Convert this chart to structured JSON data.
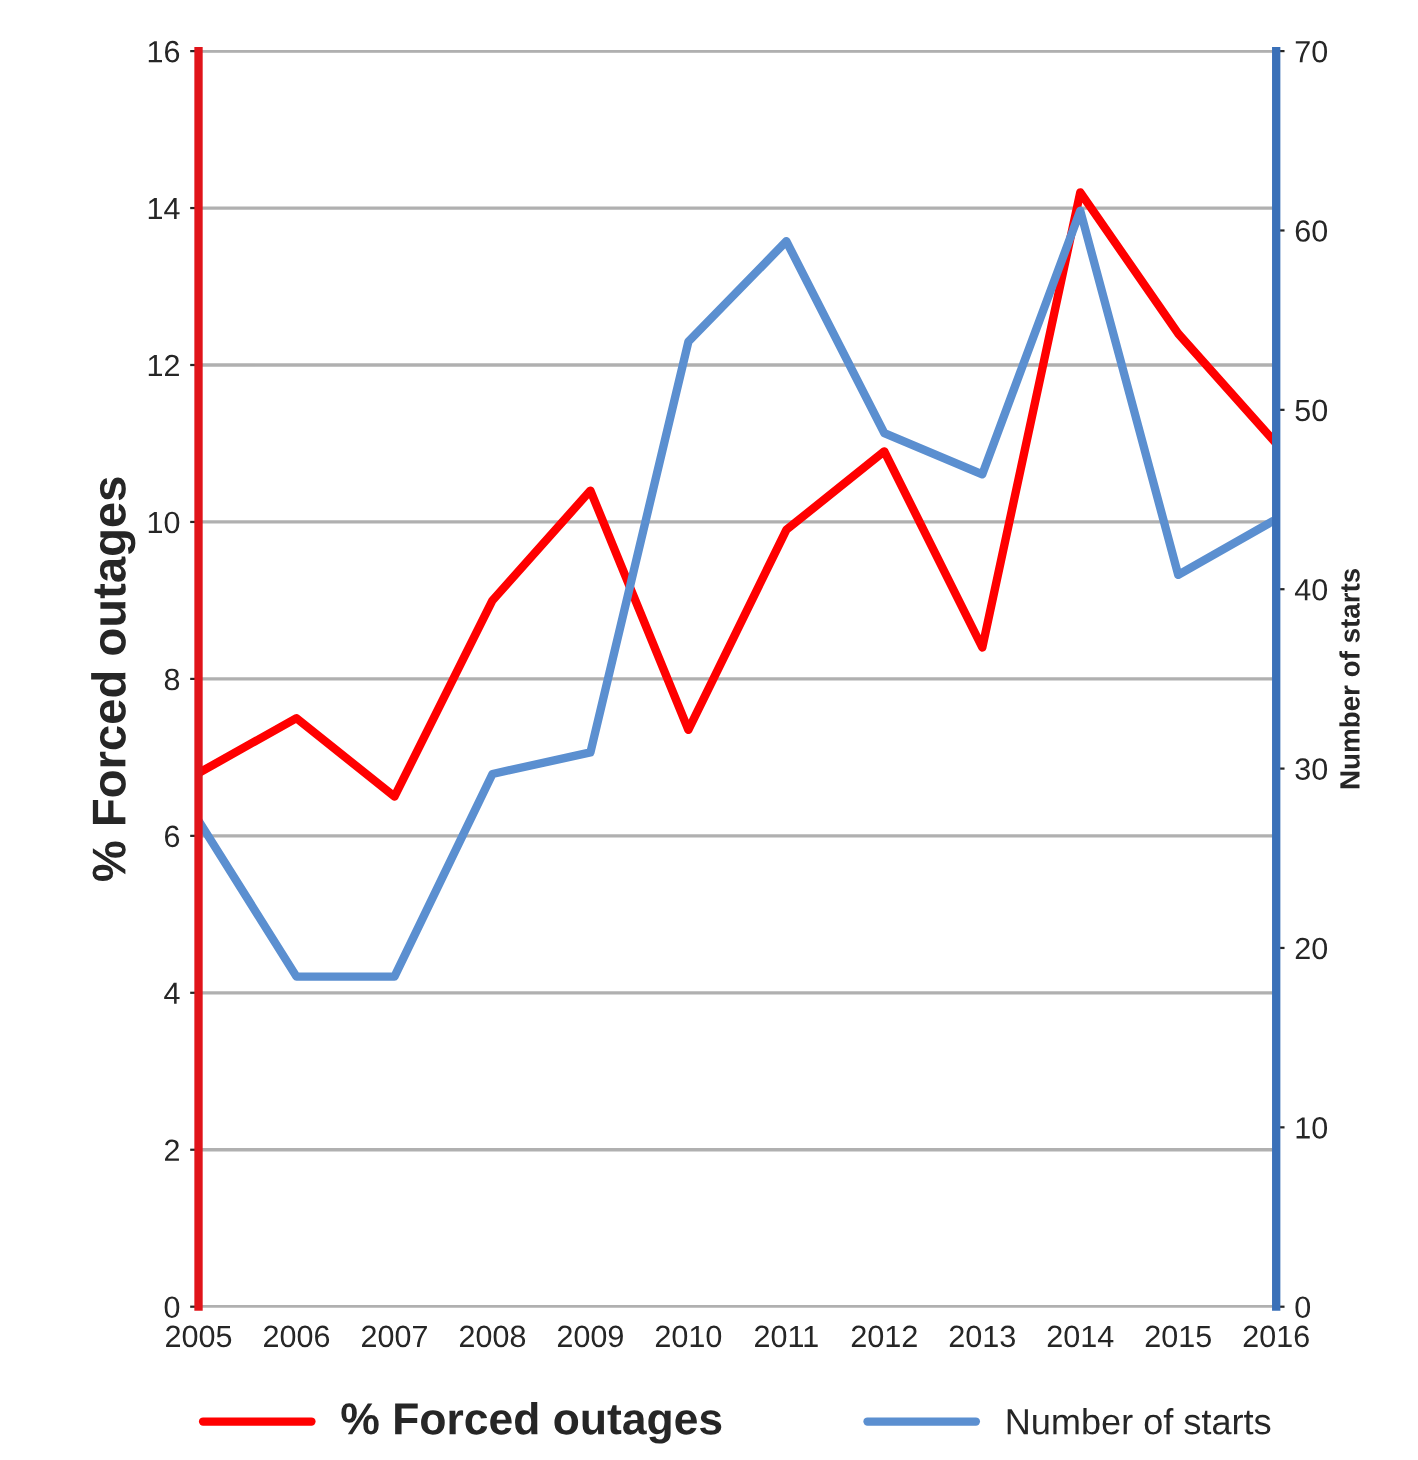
{
  "chart_data": {
    "type": "line",
    "x": [
      2005,
      2006,
      2007,
      2008,
      2009,
      2010,
      2011,
      2012,
      2013,
      2014,
      2015,
      2016
    ],
    "series": [
      {
        "name": "% Forced outages",
        "color": "#ff0000",
        "values": [
          6.8,
          7.5,
          6.5,
          9.0,
          10.4,
          7.35,
          9.9,
          10.9,
          8.4,
          14.2,
          12.4,
          11.0
        ]
      },
      {
        "name": "Number of starts",
        "color": "#5b8fd0",
        "axis": "y2",
        "values": [
          27.1,
          18.4,
          18.4,
          29.7,
          30.9,
          53.8,
          59.4,
          48.7,
          46.4,
          61.1,
          40.8,
          43.9
        ]
      }
    ],
    "ylabel": "% Forced outages",
    "y2label": "Number of starts",
    "xlim": [
      2005,
      2016
    ],
    "xticks": [
      2005,
      2006,
      2007,
      2008,
      2009,
      2010,
      2011,
      2012,
      2013,
      2014,
      2015,
      2016
    ],
    "ylim": [
      0,
      16
    ],
    "yticks": [
      0,
      2,
      4,
      6,
      8,
      10,
      12,
      14,
      16
    ],
    "y2lim": [
      0,
      70
    ],
    "y2ticks": [
      0,
      10,
      20,
      30,
      40,
      50,
      60,
      70
    ],
    "grid": "y",
    "legend": "bottom",
    "marker": "none",
    "line_style": "solid"
  }
}
